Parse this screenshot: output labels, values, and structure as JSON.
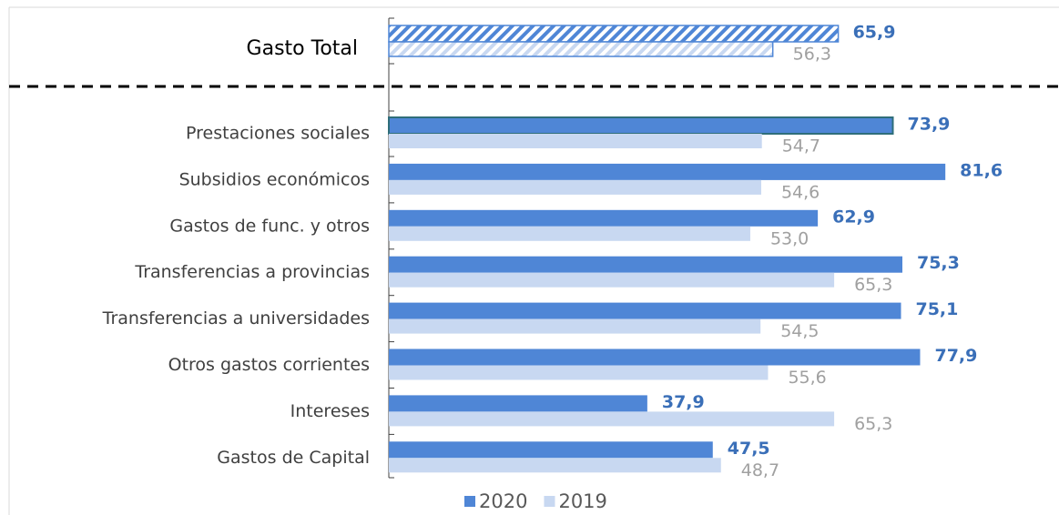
{
  "chart_data": {
    "type": "bar",
    "orientation": "horizontal",
    "categories": [
      "Gasto Total",
      "Prestaciones sociales",
      "Subsidios económicos",
      "Gastos de func. y otros",
      "Transferencias a provincias",
      "Transferencias a universidades",
      "Otros gastos corrientes",
      "Intereses",
      "Gastos de Capital"
    ],
    "series": [
      {
        "name": "2020",
        "color": "#4f86d6",
        "values": [
          65.9,
          73.9,
          81.6,
          62.9,
          75.3,
          75.1,
          77.9,
          37.9,
          47.5
        ],
        "value_labels": [
          "65,9",
          "73,9",
          "81,6",
          "62,9",
          "75,3",
          "75,1",
          "77,9",
          "37,9",
          "47,5"
        ]
      },
      {
        "name": "2019",
        "color": "#c8d8f1",
        "values": [
          56.3,
          54.7,
          54.6,
          53.0,
          65.3,
          54.5,
          55.6,
          65.3,
          48.7
        ],
        "value_labels": [
          "56,3",
          "54,7",
          "54,6",
          "53,0",
          "65,3",
          "54,5",
          "55,6",
          "65,3",
          "48,7"
        ]
      }
    ],
    "legend": "bottom"
  }
}
